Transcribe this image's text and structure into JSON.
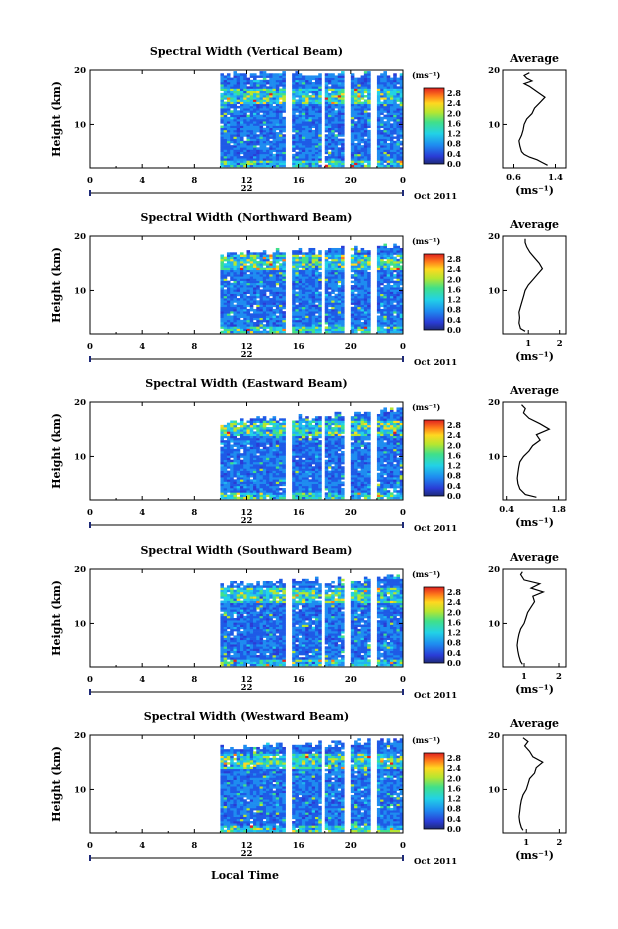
{
  "figure": {
    "xlabel": "Local Time",
    "date_label": "Oct 2011",
    "day_label": "22",
    "average_title": "Average"
  },
  "chart_data": [
    {
      "type": "heatmap",
      "title": "Spectral Width (Vertical Beam)",
      "ylabel": "Height (km)",
      "xlabel": "Local Time",
      "x_ticks": [
        "0",
        "4",
        "8",
        "12",
        "16",
        "20",
        "0"
      ],
      "y_ticks": [
        "20",
        "10"
      ],
      "xlim": [
        0,
        24
      ],
      "ylim": [
        2,
        20
      ],
      "data_start_hour": 10,
      "gaps_hours": [
        [
          15.0,
          15.4
        ],
        [
          17.7,
          18.0
        ],
        [
          19.3,
          19.8
        ],
        [
          21.4,
          21.8
        ]
      ],
      "data_top_km": [
        19.0,
        19.0
      ],
      "colorbar": {
        "unit": "(ms⁻¹)",
        "ticks": [
          "2.8",
          "2.4",
          "2.0",
          "1.6",
          "1.2",
          "0.8",
          "0.4",
          "0.0"
        ],
        "range": [
          0,
          3
        ]
      },
      "average": {
        "title": "Average",
        "xlabel": "(ms⁻¹)",
        "x_ticks": [
          "0.6",
          "1.4"
        ],
        "xlim": [
          0.4,
          1.6
        ],
        "ylim": [
          2,
          20
        ],
        "y_ticks": [
          "20",
          "10"
        ],
        "profile": [
          {
            "h": 2.5,
            "v": 1.25
          },
          {
            "h": 3.0,
            "v": 1.15
          },
          {
            "h": 3.5,
            "v": 1.05
          },
          {
            "h": 4.0,
            "v": 0.9
          },
          {
            "h": 4.5,
            "v": 0.8
          },
          {
            "h": 5.0,
            "v": 0.75
          },
          {
            "h": 6.0,
            "v": 0.72
          },
          {
            "h": 7.0,
            "v": 0.7
          },
          {
            "h": 8.0,
            "v": 0.75
          },
          {
            "h": 9.0,
            "v": 0.78
          },
          {
            "h": 10.0,
            "v": 0.8
          },
          {
            "h": 11.0,
            "v": 0.85
          },
          {
            "h": 12.0,
            "v": 0.95
          },
          {
            "h": 13.0,
            "v": 1.0
          },
          {
            "h": 14.0,
            "v": 1.1
          },
          {
            "h": 15.0,
            "v": 1.2
          },
          {
            "h": 16.0,
            "v": 1.05
          },
          {
            "h": 17.0,
            "v": 0.9
          },
          {
            "h": 17.5,
            "v": 0.8
          },
          {
            "h": 18.0,
            "v": 0.95
          },
          {
            "h": 18.5,
            "v": 0.85
          },
          {
            "h": 19.0,
            "v": 0.8
          },
          {
            "h": 19.5,
            "v": 0.9
          }
        ]
      }
    },
    {
      "type": "heatmap",
      "title": "Spectral Width (Northward Beam)",
      "ylabel": "Height (km)",
      "xlabel": "Local Time",
      "x_ticks": [
        "0",
        "4",
        "8",
        "12",
        "16",
        "20",
        "0"
      ],
      "y_ticks": [
        "20",
        "10"
      ],
      "xlim": [
        0,
        24
      ],
      "ylim": [
        2,
        20
      ],
      "data_start_hour": 10,
      "gaps_hours": [
        [
          15.0,
          15.3
        ],
        [
          17.7,
          18.0
        ],
        [
          19.3,
          19.8
        ],
        [
          21.4,
          21.8
        ]
      ],
      "data_top_km": [
        16.5,
        18.0
      ],
      "colorbar": {
        "unit": "(ms⁻¹)",
        "ticks": [
          "2.8",
          "2.4",
          "2.0",
          "1.6",
          "1.2",
          "0.8",
          "0.4",
          "0.0"
        ],
        "range": [
          0,
          3
        ]
      },
      "average": {
        "title": "Average",
        "xlabel": "(ms⁻¹)",
        "x_ticks": [
          "1",
          "2"
        ],
        "xlim": [
          0.2,
          2.2
        ],
        "ylim": [
          2,
          20
        ],
        "y_ticks": [
          "20",
          "10"
        ],
        "profile": [
          {
            "h": 2.5,
            "v": 0.9
          },
          {
            "h": 3.0,
            "v": 0.75
          },
          {
            "h": 4.0,
            "v": 0.7
          },
          {
            "h": 5.0,
            "v": 0.72
          },
          {
            "h": 6.0,
            "v": 0.7
          },
          {
            "h": 7.0,
            "v": 0.75
          },
          {
            "h": 8.0,
            "v": 0.8
          },
          {
            "h": 9.0,
            "v": 0.85
          },
          {
            "h": 10.0,
            "v": 0.9
          },
          {
            "h": 11.0,
            "v": 1.0
          },
          {
            "h": 12.0,
            "v": 1.15
          },
          {
            "h": 13.0,
            "v": 1.3
          },
          {
            "h": 14.0,
            "v": 1.45
          },
          {
            "h": 15.0,
            "v": 1.35
          },
          {
            "h": 16.0,
            "v": 1.2
          },
          {
            "h": 17.0,
            "v": 1.05
          },
          {
            "h": 18.0,
            "v": 0.95
          },
          {
            "h": 18.8,
            "v": 0.9
          },
          {
            "h": 19.5,
            "v": 0.9
          }
        ]
      }
    },
    {
      "type": "heatmap",
      "title": "Spectral Width (Eastward Beam)",
      "ylabel": "Height (km)",
      "xlabel": "Local Time",
      "x_ticks": [
        "0",
        "4",
        "8",
        "12",
        "16",
        "20",
        "0"
      ],
      "y_ticks": [
        "20",
        "10"
      ],
      "xlim": [
        0,
        24
      ],
      "ylim": [
        2,
        20
      ],
      "data_start_hour": 10,
      "gaps_hours": [
        [
          15.0,
          15.3
        ],
        [
          17.7,
          18.0
        ],
        [
          19.3,
          19.8
        ],
        [
          21.4,
          21.8
        ]
      ],
      "data_top_km": [
        16.0,
        18.5
      ],
      "colorbar": {
        "unit": "(ms⁻¹)",
        "ticks": [
          "2.8",
          "2.4",
          "2.0",
          "1.6",
          "1.2",
          "0.8",
          "0.4",
          "0.0"
        ],
        "range": [
          0,
          3
        ]
      },
      "average": {
        "title": "Average",
        "xlabel": "(ms⁻¹)",
        "x_ticks": [
          "0.4",
          "1.8"
        ],
        "xlim": [
          0.3,
          2.0
        ],
        "ylim": [
          2,
          20
        ],
        "y_ticks": [
          "20",
          "10"
        ],
        "profile": [
          {
            "h": 2.5,
            "v": 1.2
          },
          {
            "h": 3.0,
            "v": 0.9
          },
          {
            "h": 4.0,
            "v": 0.75
          },
          {
            "h": 5.0,
            "v": 0.7
          },
          {
            "h": 6.0,
            "v": 0.68
          },
          {
            "h": 7.0,
            "v": 0.7
          },
          {
            "h": 8.0,
            "v": 0.72
          },
          {
            "h": 9.0,
            "v": 0.75
          },
          {
            "h": 10.0,
            "v": 0.85
          },
          {
            "h": 11.0,
            "v": 1.0
          },
          {
            "h": 12.0,
            "v": 1.1
          },
          {
            "h": 13.0,
            "v": 1.3
          },
          {
            "h": 14.0,
            "v": 1.2
          },
          {
            "h": 15.0,
            "v": 1.55
          },
          {
            "h": 16.0,
            "v": 1.3
          },
          {
            "h": 17.0,
            "v": 1.0
          },
          {
            "h": 18.0,
            "v": 0.85
          },
          {
            "h": 18.8,
            "v": 0.9
          },
          {
            "h": 19.5,
            "v": 0.8
          }
        ]
      }
    },
    {
      "type": "heatmap",
      "title": "Spectral Width (Southward Beam)",
      "ylabel": "Height (km)",
      "xlabel": "Local Time",
      "x_ticks": [
        "0",
        "4",
        "8",
        "12",
        "16",
        "20",
        "0"
      ],
      "y_ticks": [
        "20",
        "10"
      ],
      "xlim": [
        0,
        24
      ],
      "ylim": [
        2,
        20
      ],
      "data_start_hour": 10,
      "gaps_hours": [
        [
          15.0,
          15.3
        ],
        [
          17.7,
          18.0
        ],
        [
          19.3,
          19.8
        ],
        [
          21.4,
          21.8
        ]
      ],
      "data_top_km": [
        17.0,
        18.5
      ],
      "colorbar": {
        "unit": "(ms⁻¹)",
        "ticks": [
          "2.8",
          "2.4",
          "2.0",
          "1.6",
          "1.2",
          "0.8",
          "0.4",
          "0.0"
        ],
        "range": [
          0,
          3
        ]
      },
      "average": {
        "title": "Average",
        "xlabel": "(ms⁻¹)",
        "x_ticks": [
          "1",
          "2"
        ],
        "xlim": [
          0.4,
          2.2
        ],
        "ylim": [
          2,
          20
        ],
        "y_ticks": [
          "20",
          "10"
        ],
        "profile": [
          {
            "h": 2.5,
            "v": 0.95
          },
          {
            "h": 3.0,
            "v": 0.9
          },
          {
            "h": 4.0,
            "v": 0.85
          },
          {
            "h": 5.0,
            "v": 0.82
          },
          {
            "h": 6.0,
            "v": 0.8
          },
          {
            "h": 7.0,
            "v": 0.82
          },
          {
            "h": 8.0,
            "v": 0.85
          },
          {
            "h": 9.0,
            "v": 0.9
          },
          {
            "h": 10.0,
            "v": 1.0
          },
          {
            "h": 11.0,
            "v": 1.05
          },
          {
            "h": 12.0,
            "v": 1.1
          },
          {
            "h": 13.0,
            "v": 1.2
          },
          {
            "h": 14.0,
            "v": 1.3
          },
          {
            "h": 15.0,
            "v": 1.25
          },
          {
            "h": 15.8,
            "v": 1.55
          },
          {
            "h": 16.5,
            "v": 1.2
          },
          {
            "h": 17.3,
            "v": 1.45
          },
          {
            "h": 18.0,
            "v": 1.0
          },
          {
            "h": 19.0,
            "v": 0.9
          },
          {
            "h": 19.5,
            "v": 0.95
          }
        ]
      }
    },
    {
      "type": "heatmap",
      "title": "Spectral Width (Westward Beam)",
      "ylabel": "Height (km)",
      "xlabel": "Local Time",
      "x_ticks": [
        "0",
        "4",
        "8",
        "12",
        "16",
        "20",
        "0"
      ],
      "y_ticks": [
        "20",
        "10"
      ],
      "xlim": [
        0,
        24
      ],
      "ylim": [
        2,
        20
      ],
      "data_start_hour": 10,
      "gaps_hours": [
        [
          15.0,
          15.3
        ],
        [
          17.7,
          18.0
        ],
        [
          19.3,
          19.8
        ],
        [
          21.4,
          21.8
        ]
      ],
      "data_top_km": [
        17.5,
        19.0
      ],
      "colorbar": {
        "unit": "(ms⁻¹)",
        "ticks": [
          "2.8",
          "2.4",
          "2.0",
          "1.6",
          "1.2",
          "0.8",
          "0.4",
          "0.0"
        ],
        "range": [
          0,
          3
        ]
      },
      "average": {
        "title": "Average",
        "xlabel": "(ms⁻¹)",
        "x_ticks": [
          "1",
          "2"
        ],
        "xlim": [
          0.3,
          2.2
        ],
        "ylim": [
          2,
          20
        ],
        "y_ticks": [
          "20",
          "10"
        ],
        "profile": [
          {
            "h": 2.5,
            "v": 0.9
          },
          {
            "h": 3.0,
            "v": 0.85
          },
          {
            "h": 4.0,
            "v": 0.8
          },
          {
            "h": 5.0,
            "v": 0.78
          },
          {
            "h": 6.0,
            "v": 0.8
          },
          {
            "h": 7.0,
            "v": 0.82
          },
          {
            "h": 8.0,
            "v": 0.85
          },
          {
            "h": 9.0,
            "v": 0.9
          },
          {
            "h": 10.0,
            "v": 1.0
          },
          {
            "h": 11.0,
            "v": 1.05
          },
          {
            "h": 12.0,
            "v": 1.1
          },
          {
            "h": 13.0,
            "v": 1.25
          },
          {
            "h": 14.0,
            "v": 1.3
          },
          {
            "h": 15.0,
            "v": 1.5
          },
          {
            "h": 16.0,
            "v": 1.2
          },
          {
            "h": 17.0,
            "v": 1.1
          },
          {
            "h": 18.0,
            "v": 0.95
          },
          {
            "h": 18.8,
            "v": 1.05
          },
          {
            "h": 19.5,
            "v": 0.9
          }
        ]
      }
    }
  ]
}
